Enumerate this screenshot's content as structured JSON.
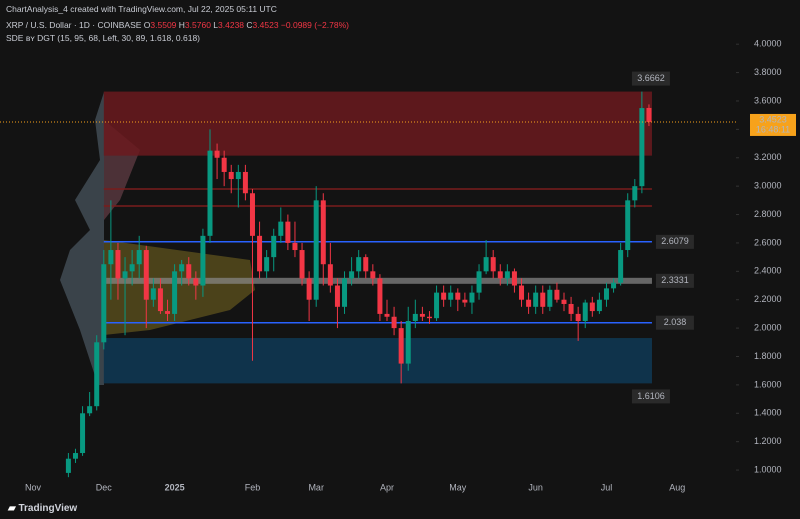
{
  "header": {
    "credit": "ChartAnalysis_4 created with TradingView.com, Jul 22, 2025 05:11 UTC",
    "symbol": "XRP / U.S. Dollar · 1D · COINBASE",
    "ohlc": [
      {
        "key": "O",
        "value": 3.5509
      },
      {
        "key": "H",
        "value": 3.576,
        "label": "3.5760"
      },
      {
        "key": "L",
        "value": 3.4238
      },
      {
        "key": "C",
        "value": 3.4523
      }
    ],
    "change": "−0.0989 (−2.78%)",
    "indicator": "SDE ʙʏ DGT",
    "indicator_params": "(15, 95, 68, Left, 30, 89, 1.618, 0.618)"
  },
  "footer": {
    "brand": "TradingView"
  },
  "chart_data": {
    "type": "candlestick",
    "up_color": "#089981",
    "down_color": "#f23645",
    "categories": [
      "Nov",
      null,
      null,
      null,
      null,
      null,
      null,
      null,
      null,
      null,
      "Dec",
      null,
      null,
      null,
      null,
      null,
      null,
      null,
      null,
      null,
      "2025",
      null,
      null,
      null,
      null,
      null,
      null,
      null,
      null,
      null,
      null,
      "Feb",
      null,
      null,
      null,
      null,
      null,
      null,
      null,
      null,
      "Mar",
      null,
      null,
      null,
      null,
      null,
      null,
      null,
      null,
      null,
      "Apr",
      null,
      null,
      null,
      null,
      null,
      null,
      null,
      null,
      null,
      "May",
      null,
      null,
      null,
      null,
      null,
      null,
      null,
      null,
      null,
      null,
      "Jun",
      null,
      null,
      null,
      null,
      null,
      null,
      null,
      null,
      null,
      "Jul",
      null,
      null,
      null,
      null,
      null,
      null,
      null,
      null,
      null,
      "Aug"
    ],
    "open": [
      null,
      null,
      null,
      null,
      null,
      0.98,
      1.08,
      1.12,
      1.4,
      1.45,
      1.9,
      2.45,
      2.55,
      2.35,
      2.4,
      2.45,
      2.55,
      2.2,
      2.28,
      2.12,
      2.1,
      2.4,
      2.45,
      2.35,
      2.3,
      2.65,
      3.25,
      3.2,
      3.1,
      3.05,
      3.1,
      2.95,
      2.65,
      2.4,
      2.5,
      2.65,
      2.75,
      2.6,
      2.55,
      2.35,
      2.2,
      2.9,
      2.45,
      2.3,
      2.15,
      2.35,
      2.4,
      2.5,
      2.4,
      2.35,
      2.1,
      2.08,
      2.0,
      1.75,
      2.05,
      2.1,
      2.08,
      2.07,
      2.25,
      2.2,
      2.25,
      2.2,
      2.18,
      2.25,
      2.4,
      2.5,
      2.4,
      2.35,
      2.4,
      2.3,
      2.2,
      2.15,
      2.25,
      2.15,
      2.27,
      2.2,
      2.17,
      2.1,
      2.05,
      2.18,
      2.12,
      2.2,
      2.28,
      2.32,
      2.55,
      2.9,
      3.0,
      3.5509,
      null,
      null,
      null,
      null
    ],
    "high": [
      null,
      null,
      null,
      null,
      null,
      1.12,
      1.15,
      1.45,
      1.55,
      1.95,
      2.55,
      2.9,
      2.6,
      2.5,
      2.55,
      2.65,
      2.58,
      2.35,
      2.35,
      2.2,
      2.45,
      2.48,
      2.5,
      2.4,
      2.7,
      3.4,
      3.3,
      3.25,
      3.15,
      3.15,
      3.15,
      2.98,
      2.75,
      2.55,
      2.7,
      2.85,
      2.8,
      2.75,
      2.6,
      2.4,
      3.0,
      2.95,
      2.6,
      2.35,
      2.4,
      2.5,
      2.55,
      2.52,
      2.45,
      2.38,
      2.2,
      2.15,
      2.05,
      2.15,
      2.2,
      2.15,
      2.12,
      2.3,
      2.3,
      2.3,
      2.28,
      2.25,
      2.3,
      2.45,
      2.62,
      2.55,
      2.45,
      2.45,
      2.42,
      2.35,
      2.25,
      2.3,
      2.3,
      2.3,
      2.32,
      2.25,
      2.22,
      2.15,
      2.2,
      2.22,
      2.25,
      2.32,
      2.35,
      2.6,
      2.95,
      3.05,
      3.6662,
      3.576,
      null,
      null,
      null,
      null
    ],
    "low": [
      null,
      null,
      null,
      null,
      null,
      0.95,
      1.05,
      1.1,
      1.38,
      1.42,
      1.85,
      2.2,
      2.2,
      1.95,
      2.3,
      2.35,
      2.0,
      2.15,
      2.1,
      2.05,
      2.05,
      2.3,
      2.3,
      2.2,
      2.22,
      2.6,
      3.05,
      3.0,
      2.95,
      2.85,
      2.9,
      1.77,
      2.35,
      2.35,
      2.4,
      2.6,
      2.55,
      2.5,
      2.3,
      2.05,
      2.15,
      2.3,
      2.25,
      2.0,
      2.1,
      2.3,
      2.35,
      2.35,
      2.3,
      2.05,
      2.05,
      1.95,
      1.6106,
      1.7,
      2.0,
      2.05,
      2.03,
      2.05,
      2.15,
      2.15,
      2.12,
      2.15,
      2.1,
      2.2,
      2.38,
      2.35,
      2.3,
      2.3,
      2.25,
      2.15,
      2.1,
      2.1,
      2.1,
      2.12,
      2.18,
      2.12,
      2.05,
      1.91,
      2.0,
      2.08,
      2.1,
      2.15,
      2.25,
      2.3,
      2.5,
      2.85,
      2.95,
      3.4238,
      null,
      null,
      null,
      null
    ],
    "close": [
      null,
      null,
      null,
      null,
      null,
      1.08,
      1.12,
      1.4,
      1.45,
      1.9,
      2.45,
      2.55,
      2.35,
      2.4,
      2.45,
      2.55,
      2.2,
      2.28,
      2.12,
      2.1,
      2.4,
      2.45,
      2.35,
      2.3,
      2.65,
      3.25,
      3.2,
      3.1,
      3.05,
      3.1,
      2.95,
      2.65,
      2.4,
      2.5,
      2.65,
      2.75,
      2.6,
      2.55,
      2.35,
      2.2,
      2.9,
      2.45,
      2.3,
      2.15,
      2.35,
      2.4,
      2.5,
      2.4,
      2.35,
      2.1,
      2.08,
      2.0,
      1.75,
      2.05,
      2.1,
      2.08,
      2.07,
      2.25,
      2.2,
      2.25,
      2.2,
      2.18,
      2.25,
      2.4,
      2.5,
      2.4,
      2.35,
      2.4,
      2.3,
      2.2,
      2.15,
      2.25,
      2.15,
      2.27,
      2.2,
      2.17,
      2.1,
      2.05,
      2.18,
      2.12,
      2.2,
      2.28,
      2.32,
      2.55,
      2.9,
      3.0,
      3.55,
      3.4523,
      null,
      null,
      null,
      null
    ],
    "ylim": [
      0.93,
      4.1
    ],
    "yticks": [
      {
        "value": 1,
        "label": "1.0000"
      },
      {
        "value": 1.2,
        "label": "1.2000"
      },
      {
        "value": 1.4,
        "label": "1.4000"
      },
      {
        "value": 1.6,
        "label": "1.6000"
      },
      {
        "value": 1.8,
        "label": "1.8000"
      },
      {
        "value": 2,
        "label": "2.0000"
      },
      {
        "value": 2.2,
        "label": "2.2000"
      },
      {
        "value": 2.4,
        "label": "2.4000"
      },
      {
        "value": 2.6,
        "label": "2.6000"
      },
      {
        "value": 2.8,
        "label": "2.8000"
      },
      {
        "value": 3,
        "label": "3.0000"
      },
      {
        "value": 3.2,
        "label": "3.2000"
      },
      {
        "value": 3.4,
        "label": "3.4000"
      },
      {
        "value": 3.6,
        "label": "3.6000"
      },
      {
        "value": 3.8,
        "label": "3.8000"
      },
      {
        "value": 4,
        "label": "4.0000"
      }
    ],
    "zones": [
      {
        "from": 3.215,
        "to": 3.6662,
        "color": "#6b1a1e",
        "label_edge": "to"
      },
      {
        "from": 1.6106,
        "to": 1.93,
        "color": "#0f3a56",
        "label_edge": "from"
      }
    ],
    "levels": [
      {
        "value": 2.98,
        "color": "#7a1c1c"
      },
      {
        "value": 2.86,
        "color": "#7a1c1c"
      },
      {
        "value": 2.6079,
        "color": "#2962ff",
        "labeled": true
      },
      {
        "value": 2.3331,
        "color": "#8a8a8a",
        "labeled": true,
        "band": true
      },
      {
        "value": 2.038,
        "color": "#2962ff",
        "labeled": true
      }
    ],
    "last_price": {
      "value": 3.4523,
      "time": "16:48:11",
      "color": "#f7a21b"
    }
  }
}
